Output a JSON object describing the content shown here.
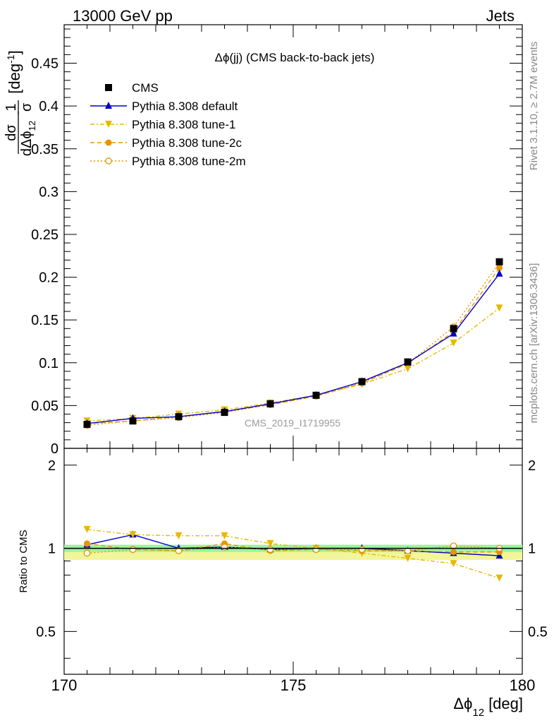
{
  "header": {
    "left": "13000 GeV pp",
    "right": "Jets"
  },
  "side_text": {
    "rivet": "Rivet 3.1.10, ≥ 2.7M events",
    "site": "mcplots.cern.ch [arXiv:1306.3436]"
  },
  "chart_data": {
    "type": "line",
    "title": "Δϕ(jj) (CMS back-to-back jets)",
    "watermark": "CMS_2019_I1719955",
    "xlabel": "Δϕ",
    "xlabel_sub": "12",
    "xlabel_unit": "[deg]",
    "ylabel_frac_num": "1",
    "ylabel_frac_den": "σ",
    "ylabel_dfrac_num": "dσ",
    "ylabel_dfrac_den": "dΔϕ",
    "ylabel_dfrac_den_sub": "12",
    "ylabel_unit": "[deg",
    "ylabel_unit_sup": "-1",
    "ylabel_unit_close": "]",
    "ratio_ylabel": "Ratio to CMS",
    "xlim": [
      170,
      180
    ],
    "ylim": [
      0,
      0.495
    ],
    "ratio_ylim": [
      0.35,
      2.3
    ],
    "x_ticks": [
      "170",
      "175",
      "180"
    ],
    "y_ticks": [
      "0",
      "0.05",
      "0.1",
      "0.15",
      "0.2",
      "0.25",
      "0.3",
      "0.35",
      "0.4",
      "0.45"
    ],
    "ratio_ticks": [
      "0.5",
      "1",
      "2"
    ],
    "x": [
      170.5,
      171.5,
      172.5,
      173.5,
      174.5,
      175.5,
      176.5,
      177.5,
      178.5,
      179.5
    ],
    "cms": [
      0.028,
      0.032,
      0.037,
      0.042,
      0.052,
      0.062,
      0.078,
      0.101,
      0.14,
      0.218
    ],
    "band_inner": [
      0.03,
      0.03,
      0.03,
      0.03,
      0.03,
      0.03,
      0.03,
      0.03,
      0.03,
      0.03
    ],
    "band_outer": [
      0.06,
      0.06,
      0.06,
      0.06,
      0.06,
      0.06,
      0.06,
      0.06,
      0.06,
      0.06
    ],
    "series": [
      {
        "name": "CMS",
        "key": "cms",
        "color": "#000000",
        "marker": "square-filled",
        "line": "none",
        "values": [
          0.028,
          0.032,
          0.037,
          0.042,
          0.052,
          0.062,
          0.078,
          0.101,
          0.14,
          0.218
        ]
      },
      {
        "name": "Pythia 8.308 default",
        "key": "default",
        "color": "#0000cc",
        "marker": "triangle-up-filled",
        "line": "solid",
        "values": [
          0.029,
          0.035,
          0.037,
          0.043,
          0.052,
          0.062,
          0.078,
          0.1,
          0.134,
          0.204
        ]
      },
      {
        "name": "Pythia 8.308 tune-1",
        "key": "tune1",
        "color": "#e6b800",
        "marker": "triangle-down-filled",
        "line": "dashdot",
        "values": [
          0.032,
          0.035,
          0.04,
          0.045,
          0.053,
          0.062,
          0.075,
          0.093,
          0.123,
          0.164
        ]
      },
      {
        "name": "Pythia 8.308 tune-2c",
        "key": "tune2c",
        "color": "#e69500",
        "marker": "circle-filled",
        "line": "dashed",
        "values": [
          0.029,
          0.032,
          0.037,
          0.043,
          0.051,
          0.061,
          0.076,
          0.099,
          0.136,
          0.211
        ]
      },
      {
        "name": "Pythia 8.308 tune-2m",
        "key": "tune2m",
        "color": "#e69500",
        "marker": "circle-open",
        "line": "dotted",
        "values": [
          0.027,
          0.032,
          0.036,
          0.042,
          0.051,
          0.061,
          0.077,
          0.099,
          0.142,
          0.217
        ]
      }
    ],
    "ratios": [
      {
        "key": "default",
        "values": [
          1.03,
          1.12,
          1.0,
          1.01,
          0.99,
          1.0,
          1.0,
          0.98,
          0.96,
          0.94
        ]
      },
      {
        "key": "tune1",
        "values": [
          1.17,
          1.12,
          1.11,
          1.11,
          1.04,
          1.0,
          0.96,
          0.92,
          0.88,
          0.78
        ]
      },
      {
        "key": "tune2c",
        "values": [
          1.04,
          0.99,
          0.98,
          1.04,
          0.98,
          0.99,
          0.98,
          0.98,
          0.97,
          0.97
        ]
      },
      {
        "key": "tune2m",
        "values": [
          0.96,
          0.99,
          0.98,
          1.01,
          0.99,
          0.99,
          0.99,
          0.98,
          1.02,
          1.0
        ]
      }
    ]
  }
}
